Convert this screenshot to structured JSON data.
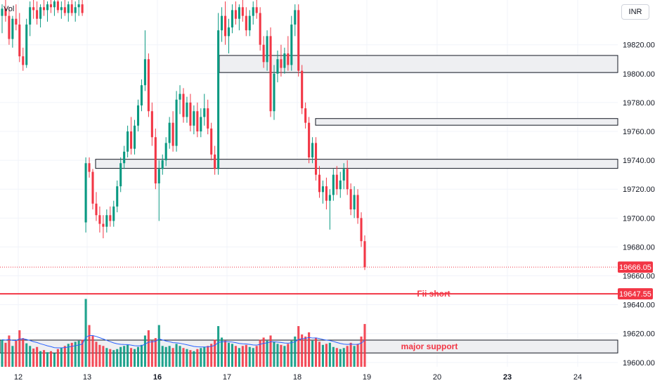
{
  "chart_data": {
    "type": "candlestick",
    "currency": "INR",
    "volume_label": "Vol",
    "x_tick_labels": [
      {
        "label": "12",
        "bold": false
      },
      {
        "label": "13",
        "bold": false
      },
      {
        "label": "16",
        "bold": true
      },
      {
        "label": "17",
        "bold": false
      },
      {
        "label": "18",
        "bold": false
      },
      {
        "label": "19",
        "bold": false
      },
      {
        "label": "20",
        "bold": false
      },
      {
        "label": "23",
        "bold": true
      },
      {
        "label": "24",
        "bold": false
      }
    ],
    "y_ticks": [
      19600,
      19620,
      19640,
      19660,
      19680,
      19700,
      19720,
      19740,
      19760,
      19780,
      19800,
      19820
    ],
    "y_tick_labels": [
      "19600.00",
      "19620.00",
      "19640.00",
      "19660.00",
      "19680.00",
      "19700.00",
      "19720.00",
      "19740.00",
      "19760.00",
      "19780.00",
      "19800.00",
      "19820.00"
    ],
    "ylim": [
      19597,
      19851
    ],
    "last_price": 19666.05,
    "last_price_label": "19666.05",
    "fii_short_level": 19647.55,
    "fii_short_level_label": "19647.55",
    "fii_short_text": "Fii short",
    "major_support_text": "major support",
    "zones": [
      {
        "name": "supply-zone-1",
        "from": 19800.8,
        "to": 19812.6
      },
      {
        "name": "supply-zone-2",
        "from": 19764.3,
        "to": 19768.9
      },
      {
        "name": "demand-zone-1",
        "from": 19734.4,
        "to": 19740.7
      },
      {
        "name": "major-support-zone",
        "from": 19606.6,
        "to": 19615.5
      }
    ],
    "colors": {
      "up": "#089981",
      "down": "#f23645",
      "zone_fill": "#eeeff2",
      "zone_border": "#131722",
      "grid": "#f0f3fa",
      "avg_volume": "#2962ff"
    },
    "candles": [
      [
        19840,
        19848,
        19828,
        19845,
        52
      ],
      [
        19845,
        19852,
        19836,
        19840,
        46
      ],
      [
        19840,
        19846,
        19820,
        19824,
        60
      ],
      [
        19824,
        19840,
        19818,
        19838,
        40
      ],
      [
        19838,
        19848,
        19830,
        19834,
        50
      ],
      [
        19834,
        19842,
        19808,
        19812,
        70
      ],
      [
        19812,
        19818,
        19802,
        19806,
        55
      ],
      [
        19806,
        19838,
        19804,
        19834,
        45
      ],
      [
        19834,
        19850,
        19826,
        19846,
        40
      ],
      [
        19846,
        19852,
        19838,
        19844,
        35
      ],
      [
        19844,
        19850,
        19834,
        19838,
        38
      ],
      [
        19838,
        19848,
        19832,
        19846,
        30
      ],
      [
        19846,
        19852,
        19840,
        19844,
        32
      ],
      [
        19844,
        19850,
        19836,
        19848,
        28
      ],
      [
        19848,
        19852,
        19842,
        19846,
        30
      ],
      [
        19846,
        19852,
        19840,
        19850,
        26
      ],
      [
        19850,
        19852,
        19842,
        19844,
        34
      ],
      [
        19844,
        19850,
        19838,
        19846,
        36
      ],
      [
        19846,
        19852,
        19840,
        19842,
        40
      ],
      [
        19842,
        19850,
        19836,
        19848,
        44
      ],
      [
        19848,
        19852,
        19840,
        19842,
        46
      ],
      [
        19842,
        19850,
        19836,
        19846,
        48
      ],
      [
        19846,
        19852,
        19840,
        19848,
        50
      ],
      [
        19848,
        19852,
        19840,
        19842,
        52
      ],
      [
        19697,
        19742,
        19690,
        19738,
        130
      ],
      [
        19738,
        19742,
        19728,
        19732,
        80
      ],
      [
        19732,
        19734,
        19706,
        19710,
        60
      ],
      [
        19710,
        19718,
        19698,
        19702,
        48
      ],
      [
        19702,
        19708,
        19690,
        19696,
        42
      ],
      [
        19696,
        19702,
        19686,
        19694,
        40
      ],
      [
        19694,
        19706,
        19690,
        19702,
        36
      ],
      [
        19702,
        19708,
        19694,
        19698,
        34
      ],
      [
        19698,
        19712,
        19694,
        19708,
        32
      ],
      [
        19708,
        19726,
        19704,
        19722,
        34
      ],
      [
        19722,
        19742,
        19718,
        19738,
        38
      ],
      [
        19738,
        19750,
        19734,
        19746,
        40
      ],
      [
        19746,
        19764,
        19742,
        19760,
        42
      ],
      [
        19760,
        19770,
        19744,
        19748,
        36
      ],
      [
        19748,
        19768,
        19744,
        19764,
        34
      ],
      [
        19764,
        19782,
        19760,
        19778,
        38
      ],
      [
        19778,
        19796,
        19774,
        19792,
        42
      ],
      [
        19792,
        19830,
        19788,
        19810,
        60
      ],
      [
        19810,
        19814,
        19770,
        19774,
        70
      ],
      [
        19774,
        19780,
        19750,
        19756,
        50
      ],
      [
        19756,
        19762,
        19720,
        19724,
        55
      ],
      [
        19724,
        19740,
        19698,
        19734,
        80
      ],
      [
        19734,
        19744,
        19730,
        19740,
        40
      ],
      [
        19740,
        19756,
        19736,
        19752,
        38
      ],
      [
        19752,
        19770,
        19748,
        19766,
        40
      ],
      [
        19766,
        19774,
        19746,
        19750,
        36
      ],
      [
        19750,
        19788,
        19746,
        19782,
        44
      ],
      [
        19782,
        19792,
        19772,
        19786,
        40
      ],
      [
        19786,
        19790,
        19766,
        19770,
        36
      ],
      [
        19770,
        19784,
        19766,
        19780,
        34
      ],
      [
        19780,
        19786,
        19760,
        19764,
        32
      ],
      [
        19764,
        19778,
        19758,
        19774,
        30
      ],
      [
        19774,
        19780,
        19756,
        19760,
        34
      ],
      [
        19760,
        19776,
        19756,
        19770,
        36
      ],
      [
        19770,
        19786,
        19764,
        19776,
        38
      ],
      [
        19776,
        19782,
        19758,
        19762,
        40
      ],
      [
        19762,
        19766,
        19740,
        19744,
        44
      ],
      [
        19744,
        19750,
        19730,
        19734,
        52
      ],
      [
        19734,
        19842,
        19730,
        19830,
        78
      ],
      [
        19830,
        19846,
        19822,
        19840,
        56
      ],
      [
        19840,
        19850,
        19820,
        19826,
        50
      ],
      [
        19826,
        19838,
        19814,
        19832,
        46
      ],
      [
        19832,
        19848,
        19828,
        19844,
        44
      ],
      [
        19844,
        19850,
        19834,
        19838,
        40
      ],
      [
        19838,
        19848,
        19830,
        19846,
        36
      ],
      [
        19846,
        19852,
        19836,
        19840,
        40
      ],
      [
        19840,
        19846,
        19826,
        19830,
        42
      ],
      [
        19830,
        19844,
        19826,
        19840,
        38
      ],
      [
        19840,
        19850,
        19834,
        19846,
        36
      ],
      [
        19846,
        19852,
        19838,
        19842,
        40
      ],
      [
        19842,
        19846,
        19816,
        19820,
        52
      ],
      [
        19820,
        19826,
        19804,
        19808,
        56
      ],
      [
        19808,
        19830,
        19802,
        19826,
        50
      ],
      [
        19826,
        19832,
        19770,
        19774,
        60
      ],
      [
        19774,
        19806,
        19768,
        19800,
        48
      ],
      [
        19800,
        19816,
        19794,
        19810,
        44
      ],
      [
        19810,
        19820,
        19798,
        19804,
        42
      ],
      [
        19804,
        19818,
        19800,
        19814,
        40
      ],
      [
        19814,
        19826,
        19802,
        19806,
        44
      ],
      [
        19806,
        19840,
        19802,
        19834,
        50
      ],
      [
        19834,
        19848,
        19826,
        19844,
        58
      ],
      [
        19844,
        19848,
        19798,
        19802,
        78
      ],
      [
        19802,
        19806,
        19772,
        19776,
        62
      ],
      [
        19776,
        19780,
        19762,
        19766,
        58
      ],
      [
        19766,
        19770,
        19738,
        19742,
        66
      ],
      [
        19742,
        19756,
        19738,
        19752,
        50
      ],
      [
        19752,
        19756,
        19726,
        19730,
        56
      ],
      [
        19730,
        19736,
        19714,
        19718,
        48
      ],
      [
        19718,
        19726,
        19710,
        19722,
        42
      ],
      [
        19722,
        19728,
        19706,
        19712,
        44
      ],
      [
        19712,
        19720,
        19692,
        19716,
        46
      ],
      [
        19716,
        19734,
        19712,
        19730,
        38
      ],
      [
        19730,
        19736,
        19716,
        19720,
        36
      ],
      [
        19720,
        19732,
        19714,
        19726,
        34
      ],
      [
        19726,
        19738,
        19720,
        19734,
        36
      ],
      [
        19734,
        19740,
        19716,
        19720,
        40
      ],
      [
        19720,
        19724,
        19702,
        19706,
        46
      ],
      [
        19706,
        19722,
        19700,
        19716,
        40
      ],
      [
        19716,
        19720,
        19696,
        19700,
        44
      ],
      [
        19700,
        19704,
        19680,
        19684,
        58
      ],
      [
        19684,
        19688,
        19664,
        19666,
        82
      ]
    ]
  }
}
